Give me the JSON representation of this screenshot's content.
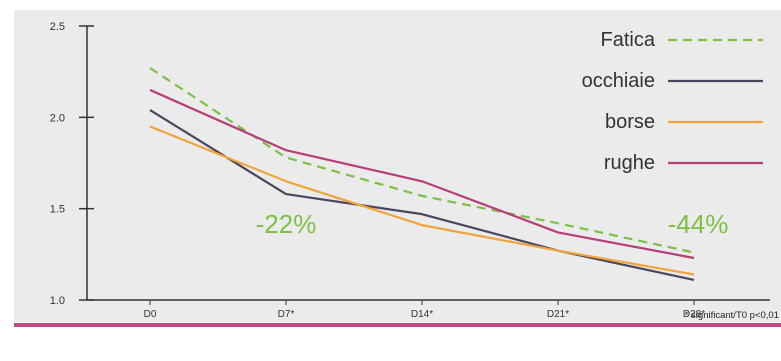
{
  "chart_data": {
    "type": "line",
    "categories": [
      "D0",
      "D7*",
      "D14*",
      "D21*",
      "D28*"
    ],
    "ylim": [
      1.0,
      2.5
    ],
    "yticks": [
      "1.0",
      "1.5",
      "2.0",
      "2.5"
    ],
    "grid": false,
    "legend_position": "top-right",
    "footnote": "* significant/T0 p<0,01",
    "annotations": [
      "-22%",
      "-44%"
    ],
    "series": [
      {
        "name": "Fatica",
        "color": "#7cc142",
        "dash": true,
        "values": [
          2.27,
          1.78,
          1.57,
          1.42,
          1.26
        ]
      },
      {
        "name": "occhiaie",
        "color": "#4a4660",
        "dash": false,
        "values": [
          2.04,
          1.58,
          1.47,
          1.27,
          1.11
        ]
      },
      {
        "name": "borse",
        "color": "#f2a33a",
        "dash": false,
        "values": [
          1.95,
          1.65,
          1.41,
          1.27,
          1.14
        ]
      },
      {
        "name": "rughe",
        "color": "#b83d78",
        "dash": false,
        "values": [
          2.15,
          1.82,
          1.65,
          1.37,
          1.23
        ]
      }
    ]
  }
}
